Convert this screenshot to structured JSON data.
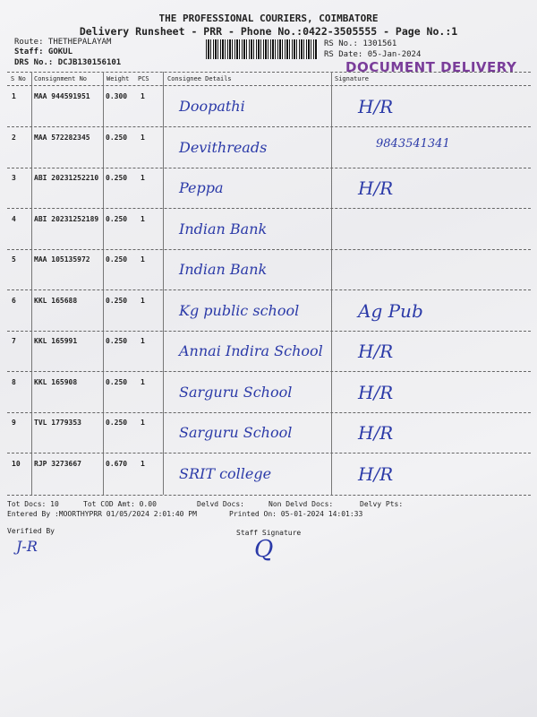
{
  "header": {
    "title": "THE PROFESSIONAL COURIERS, COIMBATORE",
    "subtitle": "Delivery Runsheet - PRR - Phone No.:0422-3505555 - Page No.:1",
    "route": "Route: THETHEPALAYAM",
    "staff": "Staff: GOKUL",
    "drs_no": "DRS No.: DCJB130156101",
    "rs_no": "RS No.: 1301561",
    "rs_date": "RS Date: 05-Jan-2024",
    "stamp": "DOCUMENT DELIVERY"
  },
  "table": {
    "columns": [
      "S No",
      "Consignment No",
      "Weight",
      "PCS",
      "Consignee Details",
      "Signature"
    ],
    "rows": [
      {
        "sno": "1",
        "consignment": "MAA 944591951",
        "weight": "0.300",
        "pcs": "1",
        "consignee": "Doopathi",
        "signature": "H/R"
      },
      {
        "sno": "2",
        "consignment": "MAA 572282345",
        "weight": "0.250",
        "pcs": "1",
        "consignee": "Devithreads",
        "signature": "9843541341"
      },
      {
        "sno": "3",
        "consignment": "ABI 20231252210",
        "weight": "0.250",
        "pcs": "1",
        "consignee": "Peppa",
        "signature": "H/R"
      },
      {
        "sno": "4",
        "consignment": "ABI 20231252189",
        "weight": "0.250",
        "pcs": "1",
        "consignee": "Indian Bank",
        "signature": ""
      },
      {
        "sno": "5",
        "consignment": "MAA 105135972",
        "weight": "0.250",
        "pcs": "1",
        "consignee": "Indian Bank",
        "signature": ""
      },
      {
        "sno": "6",
        "consignment": "KKL 165688",
        "weight": "0.250",
        "pcs": "1",
        "consignee": "Kg public school",
        "signature": "Ag Pub"
      },
      {
        "sno": "7",
        "consignment": "KKL 165991",
        "weight": "0.250",
        "pcs": "1",
        "consignee": "Annai Indira School",
        "signature": "H/R"
      },
      {
        "sno": "8",
        "consignment": "KKL 165908",
        "weight": "0.250",
        "pcs": "1",
        "consignee": "Sarguru School",
        "signature": "H/R"
      },
      {
        "sno": "9",
        "consignment": "TVL 1779353",
        "weight": "0.250",
        "pcs": "1",
        "consignee": "Sarguru School",
        "signature": "H/R"
      },
      {
        "sno": "10",
        "consignment": "RJP 3273667",
        "weight": "0.670",
        "pcs": "1",
        "consignee": "SRIT college",
        "signature": "H/R"
      }
    ]
  },
  "footer": {
    "tot_docs": "Tot Docs:  10",
    "tot_cod": "Tot COD Amt:    0.00",
    "delvd_docs": "Delvd Docs:",
    "non_delvd_docs": "Non Delvd Docs:",
    "delvy_pts": "Delvy Pts:",
    "entered_by": "Entered By :MOORTHYPRR 01/05/2024 2:01:40 PM",
    "printed_on": "Printed On: 05-01-2024 14:01:33",
    "verified_by": "Verified By",
    "staff_signature": "Staff Signature",
    "verified_sig": "J-R",
    "staff_sig": "Q"
  },
  "colors": {
    "ink": "#2b3aa8",
    "stamp": "#7a3d9a"
  }
}
